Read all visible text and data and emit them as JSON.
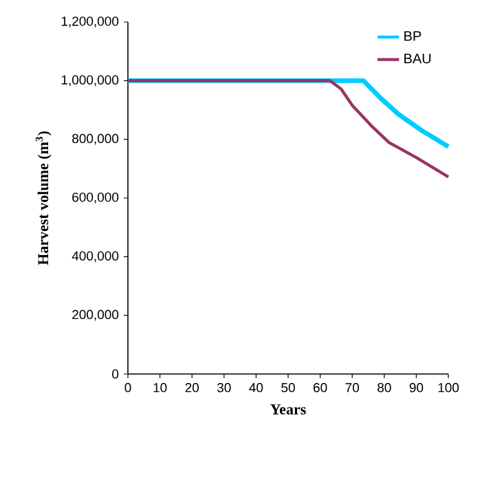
{
  "chart_data": {
    "type": "line",
    "xlabel": "Years",
    "ylabel": "Harvest volume (m$^{3}$)",
    "xlim": [
      0,
      100
    ],
    "ylim": [
      0,
      1200000
    ],
    "xticks": [
      0,
      10,
      20,
      30,
      40,
      50,
      60,
      70,
      80,
      90,
      100
    ],
    "yticks": [
      {
        "value": 0,
        "label": "0"
      },
      {
        "value": 200000,
        "label": "200,000"
      },
      {
        "value": 400000,
        "label": "400,000"
      },
      {
        "value": 600000,
        "label": "600,000"
      },
      {
        "value": 800000,
        "label": "800,000"
      },
      {
        "value": 1000000,
        "label": "1,000,000"
      },
      {
        "value": 1200000,
        "label": "1,200,000"
      }
    ],
    "legend": "top right",
    "grid": false,
    "marker": "none",
    "line_style": "solid",
    "series": [
      {
        "name": "BP",
        "color": "#00ccff",
        "x": [
          0,
          73.5,
          79,
          84.5,
          91.7,
          100
        ],
        "values": [
          1000000,
          1000000,
          939000,
          885000,
          830000,
          775000
        ]
      },
      {
        "name": "BAU",
        "color": "#993366",
        "x": [
          0,
          63,
          66.5,
          70,
          76,
          81.5,
          90,
          100
        ],
        "values": [
          1000000,
          1000000,
          972000,
          916000,
          846000,
          789000,
          738000,
          672000
        ]
      }
    ]
  }
}
